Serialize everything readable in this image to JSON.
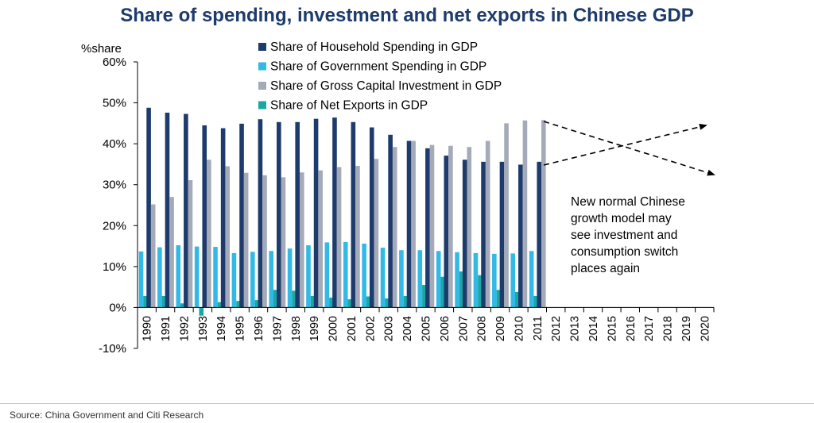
{
  "chart_data": {
    "type": "bar",
    "title": "Share of spending, investment and net exports in Chinese GDP",
    "ylabel": "%share",
    "xlabel": "",
    "ylim": [
      -10,
      60
    ],
    "yticks": [
      "-10%",
      "0%",
      "10%",
      "20%",
      "30%",
      "40%",
      "50%",
      "60%"
    ],
    "ytick_values": [
      -10,
      0,
      10,
      20,
      30,
      40,
      50,
      60
    ],
    "categories": [
      "1990",
      "1991",
      "1992",
      "1993",
      "1994",
      "1995",
      "1996",
      "1997",
      "1998",
      "1999",
      "2000",
      "2001",
      "2002",
      "2003",
      "2004",
      "2005",
      "2006",
      "2007",
      "2008",
      "2009",
      "2010",
      "2011",
      "2012",
      "2013",
      "2014",
      "2015",
      "2016",
      "2017",
      "2018",
      "2019",
      "2020"
    ],
    "series": [
      {
        "name": "Share of Household Spending in GDP",
        "color": "#1d3b6c",
        "values": [
          48.8,
          47.6,
          47.3,
          44.5,
          43.8,
          44.9,
          46.0,
          45.3,
          45.3,
          46.1,
          46.4,
          45.3,
          44.0,
          42.2,
          40.7,
          38.9,
          37.1,
          36.1,
          35.6,
          35.6,
          34.9,
          35.6,
          null,
          null,
          null,
          null,
          null,
          null,
          null,
          null,
          null
        ]
      },
      {
        "name": "Share of Government Spending in GDP",
        "color": "#33b9e6",
        "values": [
          13.7,
          14.7,
          15.2,
          14.9,
          14.8,
          13.3,
          13.6,
          13.8,
          14.4,
          15.2,
          15.9,
          16.0,
          15.6,
          14.6,
          14.0,
          14.0,
          13.8,
          13.5,
          13.3,
          13.1,
          13.2,
          13.8,
          null,
          null,
          null,
          null,
          null,
          null,
          null,
          null,
          null
        ]
      },
      {
        "name": "Share of Gross Capital Investment in GDP",
        "color": "#a4aab8",
        "values": [
          25.2,
          27.0,
          31.1,
          36.1,
          34.5,
          32.9,
          32.3,
          31.8,
          33.0,
          33.5,
          34.3,
          34.6,
          36.3,
          39.2,
          40.7,
          39.7,
          39.5,
          39.2,
          40.7,
          45.0,
          45.7,
          45.8,
          null,
          null,
          null,
          null,
          null,
          null,
          null,
          null,
          null
        ]
      },
      {
        "name": "Share of Net Exports in GDP",
        "color": "#1ba7a5",
        "values": [
          2.8,
          2.8,
          1.0,
          -2.0,
          1.3,
          1.6,
          1.8,
          4.3,
          4.1,
          2.8,
          2.4,
          2.0,
          2.7,
          2.2,
          2.8,
          5.5,
          7.5,
          8.8,
          7.9,
          4.3,
          3.8,
          2.8,
          null,
          null,
          null,
          null,
          null,
          null,
          null,
          null,
          null
        ]
      }
    ],
    "legend_position": "top-center",
    "grid": false,
    "annotation": "New normal Chinese\ngrowth model may\nsee investment and\nconsumption switch\nplaces again",
    "source": "Source: China Government and Citi Research"
  }
}
